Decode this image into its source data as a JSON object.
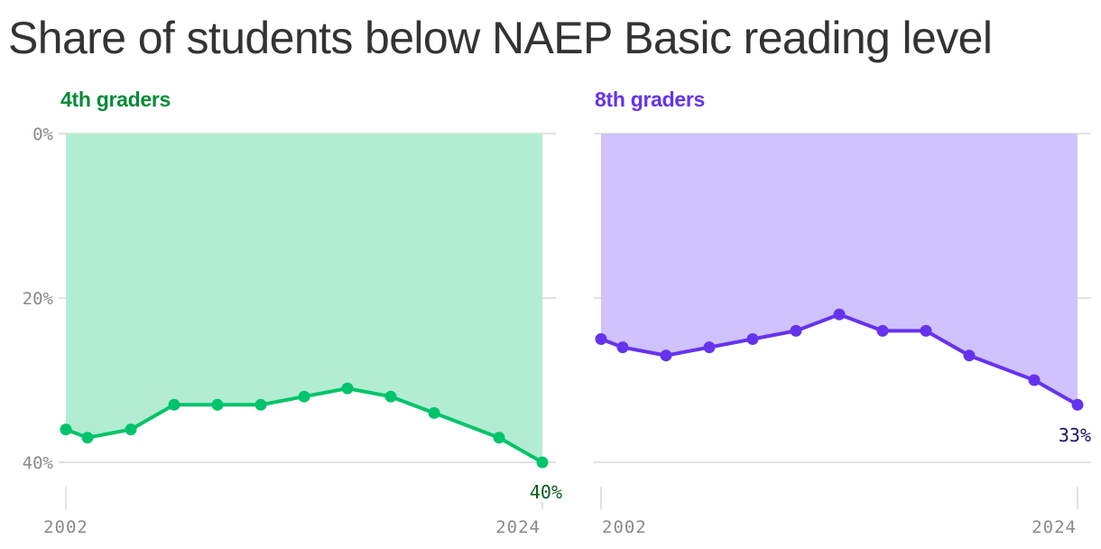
{
  "title": "Share of students below NAEP Basic reading level",
  "colors": {
    "title": "#333333",
    "axis_text": "#8a8a8a",
    "grid": "#e2e2e2",
    "fourth_line": "#00c36b",
    "fourth_fill": "#b2edd2",
    "fourth_title": "#078a3a",
    "fourth_label": "#0b5c1e",
    "eighth_line": "#6533ee",
    "eighth_fill": "#cfc2fd",
    "eighth_title": "#6533ee",
    "eighth_label": "#1f0f6b"
  },
  "panels": [
    {
      "subtitle": "4th graders",
      "y_tick_labels": [
        "0%",
        "20%",
        "40%"
      ],
      "x_tick_labels": [
        "2002",
        "2024"
      ],
      "end_label": "40%"
    },
    {
      "subtitle": "8th graders",
      "y_tick_labels": [
        "0%",
        "20%",
        "40%"
      ],
      "x_tick_labels": [
        "2002",
        "2024"
      ],
      "end_label": "33%"
    }
  ],
  "chart_data": [
    {
      "type": "area",
      "title": "4th graders",
      "chart_title": "Share of students below NAEP Basic reading level",
      "x": [
        2002,
        2003,
        2005,
        2007,
        2009,
        2011,
        2013,
        2015,
        2017,
        2019,
        2022,
        2024
      ],
      "values": [
        36,
        37,
        36,
        33,
        33,
        33,
        32,
        31,
        32,
        34,
        37,
        40
      ],
      "unit": "%",
      "ylim": [
        0,
        40
      ],
      "y_inverted": true,
      "y_ticks": [
        0,
        20,
        40
      ],
      "x_ticks": [
        2002,
        2024
      ],
      "grid": true,
      "annotation": {
        "x": 2024,
        "text": "40%"
      }
    },
    {
      "type": "area",
      "title": "8th graders",
      "chart_title": "Share of students below NAEP Basic reading level",
      "x": [
        2002,
        2003,
        2005,
        2007,
        2009,
        2011,
        2013,
        2015,
        2017,
        2019,
        2022,
        2024
      ],
      "values": [
        25,
        26,
        27,
        26,
        25,
        24,
        22,
        24,
        24,
        27,
        30,
        33
      ],
      "unit": "%",
      "ylim": [
        0,
        40
      ],
      "y_inverted": true,
      "y_ticks": [
        0,
        20,
        40
      ],
      "x_ticks": [
        2002,
        2024
      ],
      "grid": true,
      "annotation": {
        "x": 2024,
        "text": "33%"
      }
    }
  ]
}
